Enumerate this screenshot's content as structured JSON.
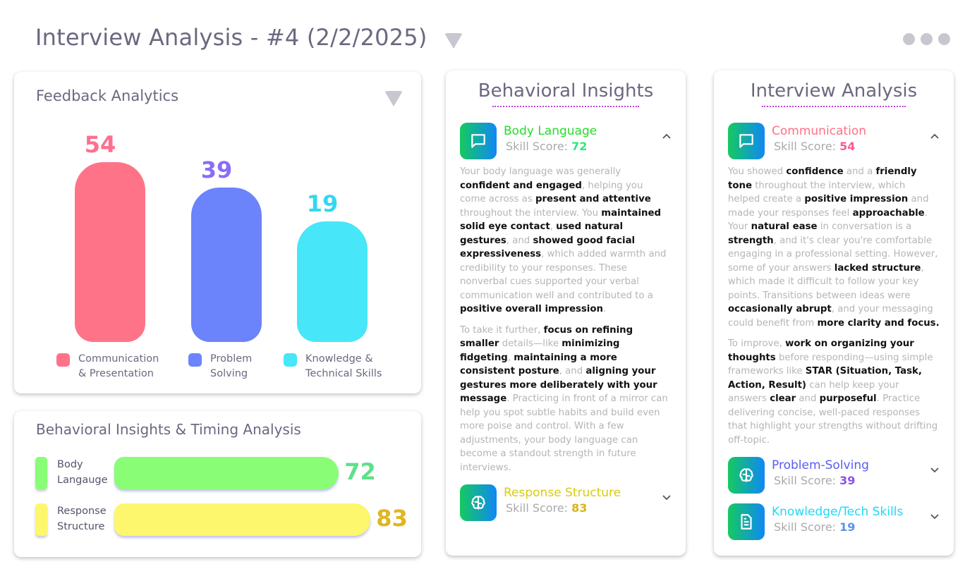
{
  "header": {
    "title": "Interview Analysis - #4 (2/2/2025)",
    "dropdown_icon": "triangle-down-icon",
    "more_icon": "more-dots-icon"
  },
  "feedback": {
    "title": "Feedback Analytics",
    "chart_data": {
      "type": "bar",
      "categories": [
        "Communication & Presentation",
        "Problem Solving",
        "Knowledge & Technical Skills"
      ],
      "values": [
        54,
        39,
        19
      ],
      "colors": [
        "#ff7389",
        "#6b83fb",
        "#47e6f8"
      ],
      "label_colors": [
        "#ff6f8f",
        "#8b6cf7",
        "#33d7f0"
      ],
      "legend": "bottom"
    },
    "legend": [
      [
        "Communication",
        "& Presentation"
      ],
      [
        "Problem",
        "Solving"
      ],
      [
        "Knowledge &",
        "Technical Skills"
      ]
    ]
  },
  "timing": {
    "title": "Behavioral Insights & Timing Analysis",
    "chart_data": {
      "type": "bar",
      "orientation": "horizontal",
      "categories": [
        "Body Langauge",
        "Response Structure"
      ],
      "values": [
        72,
        83
      ],
      "colors": [
        "#8afd76",
        "#fdf76d"
      ],
      "label_colors": [
        "#5fe08a",
        "#e0b520"
      ]
    },
    "labels": [
      [
        "Body",
        "Langauge"
      ],
      [
        "Response",
        "Structure"
      ]
    ]
  },
  "behavioral": {
    "title": "Behavioral Insights",
    "sections": [
      {
        "name": "Body Language",
        "score_label": "Skill Score:",
        "score": "72",
        "color": "#22e02a",
        "score_color": "#2ee87a",
        "icon": "chat-bubble-icon",
        "expanded": true,
        "paragraphs": [
          [
            [
              "Your body language was generally ",
              0
            ],
            [
              "confident and engaged",
              1
            ],
            [
              ", helping you come across as ",
              0
            ],
            [
              "present and attentive",
              1
            ],
            [
              " throughout the interview. You ",
              0
            ],
            [
              "maintained solid eye contact",
              1
            ],
            [
              ", ",
              0
            ],
            [
              "used natural gestures",
              1
            ],
            [
              ", and ",
              0
            ],
            [
              "showed good facial expressiveness",
              1
            ],
            [
              ", which added warmth and credibility to your responses. These nonverbal cues supported your verbal communication well and contributed to a ",
              0
            ],
            [
              "positive overall impression",
              1
            ],
            [
              ".",
              0
            ]
          ],
          [
            [
              "To take it further, ",
              0
            ],
            [
              "focus on refining smaller",
              1
            ],
            [
              " details—like ",
              0
            ],
            [
              "minimizing fidgeting",
              1
            ],
            [
              ", ",
              0
            ],
            [
              "maintaining a more consistent posture",
              1
            ],
            [
              ", and ",
              0
            ],
            [
              "aligning your gestures more deliberately with your message",
              1
            ],
            [
              ". Practicing in front of a mirror can help you spot subtle habits and build even more poise and control. With a few adjustments, your body language can become a standout strength in future interviews.",
              0
            ]
          ]
        ]
      },
      {
        "name": "Response Structure",
        "score_label": "Skill Score:",
        "score": "83",
        "color": "#d8cc10",
        "score_color": "#d8b418",
        "icon": "brain-icon",
        "expanded": false
      }
    ]
  },
  "analysis": {
    "title": "Interview Analysis",
    "sections": [
      {
        "name": "Communication",
        "score_label": "Skill Score:",
        "score": "54",
        "color": "#ff6f85",
        "score_color": "#ff5a8e",
        "icon": "chat-bubble-icon",
        "expanded": true,
        "paragraphs": [
          [
            [
              "You showed ",
              0
            ],
            [
              "confidence",
              1
            ],
            [
              " and a ",
              0
            ],
            [
              "friendly tone",
              1
            ],
            [
              " throughout the interview, which helped create a ",
              0
            ],
            [
              "positive impression",
              1
            ],
            [
              " and made your responses feel ",
              0
            ],
            [
              "approachable",
              1
            ],
            [
              ". Your ",
              0
            ],
            [
              "natural ease",
              1
            ],
            [
              " in conversation is a ",
              0
            ],
            [
              "strength",
              1
            ],
            [
              ", and it's clear you're comfortable engaging in a professional setting. However, some of your answers ",
              0
            ],
            [
              "lacked structure",
              1
            ],
            [
              ", which made it difficult to follow your key points. Transitions between ideas were ",
              0
            ],
            [
              "occasionally abrupt",
              1
            ],
            [
              ", and your messaging could benefit from ",
              0
            ],
            [
              "more clarity and focus.",
              1
            ]
          ],
          [
            [
              "To improve, ",
              0
            ],
            [
              "work on organizing your thoughts",
              1
            ],
            [
              " before responding—using simple frameworks like ",
              0
            ],
            [
              "STAR (Situation, Task, Action, Result)",
              1
            ],
            [
              " can help keep your answers ",
              0
            ],
            [
              "clear",
              1
            ],
            [
              " and ",
              0
            ],
            [
              "purposeful",
              1
            ],
            [
              ". Practice delivering concise, well-paced responses that highlight your strengths without drifting off-topic.",
              0
            ]
          ]
        ]
      },
      {
        "name": "Problem-Solving",
        "score_label": "Skill Score:",
        "score": "39",
        "color": "#5a5cf0",
        "score_color": "#8a50f0",
        "icon": "brain-icon",
        "expanded": false
      },
      {
        "name": "Knowledge/Tech Skills",
        "score_label": "Skill Score:",
        "score": "19",
        "color": "#20d8f5",
        "score_color": "#5a90f0",
        "icon": "document-icon",
        "expanded": false
      }
    ]
  }
}
